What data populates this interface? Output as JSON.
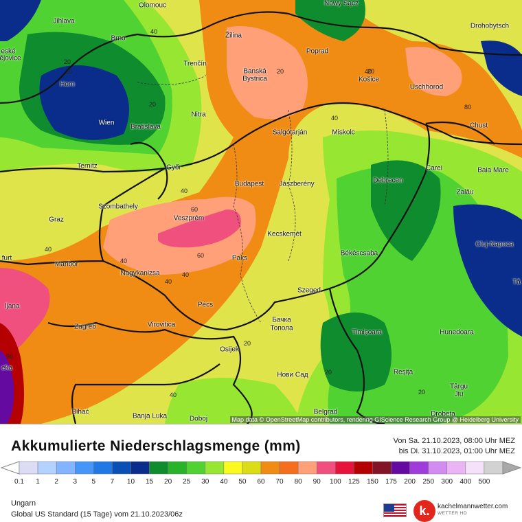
{
  "map": {
    "attribution": "Map data © OpenStreetMap contributors, rendering GIScience Research Group @ Heidelberg University",
    "cities": [
      {
        "name": "Olomouc",
        "dark": false
      },
      {
        "name": "Nowy Sącz",
        "dark": false
      },
      {
        "name": "Drohobytsch",
        "dark": false
      },
      {
        "name": "Jihlava",
        "dark": false
      },
      {
        "name": "Brno",
        "dark": false
      },
      {
        "name": "Žilina",
        "dark": false
      },
      {
        "name": "Poprad",
        "dark": false
      },
      {
        "name": "eské",
        "dark": false
      },
      {
        "name": "ějovice",
        "dark": false
      },
      {
        "name": "Trenčín",
        "dark": false
      },
      {
        "name": "Banská",
        "dark": false
      },
      {
        "name": "Bystrica",
        "dark": false
      },
      {
        "name": "Košice",
        "dark": false
      },
      {
        "name": "Uschhorod",
        "dark": false
      },
      {
        "name": "Horn",
        "dark": false
      },
      {
        "name": "Nitra",
        "dark": false
      },
      {
        "name": "Wien",
        "dark": true
      },
      {
        "name": "Bratislava",
        "dark": false
      },
      {
        "name": "Salgótarján",
        "dark": false
      },
      {
        "name": "Miskolc",
        "dark": false
      },
      {
        "name": "Chust",
        "dark": false
      },
      {
        "name": "Ternitz",
        "dark": false
      },
      {
        "name": "Győr",
        "dark": false
      },
      {
        "name": "Carei",
        "dark": false
      },
      {
        "name": "Baia Mare",
        "dark": false
      },
      {
        "name": "Budapest",
        "dark": false
      },
      {
        "name": "Jászberény",
        "dark": false
      },
      {
        "name": "Debrecen",
        "dark": false
      },
      {
        "name": "Zalău",
        "dark": false
      },
      {
        "name": "Szombathely",
        "dark": false
      },
      {
        "name": "Graz",
        "dark": false
      },
      {
        "name": "Veszprém",
        "dark": false
      },
      {
        "name": "Kecskemét",
        "dark": false
      },
      {
        "name": "Cluj-Napoca",
        "dark": false
      },
      {
        "name": "Békéscsaba",
        "dark": false
      },
      {
        "name": "furt",
        "dark": false
      },
      {
        "name": "Maribor",
        "dark": false
      },
      {
        "name": "Paks",
        "dark": false
      },
      {
        "name": "Nagykanizsa",
        "dark": false
      },
      {
        "name": "Szeged",
        "dark": false
      },
      {
        "name": "Tâ",
        "dark": false
      },
      {
        "name": "ljana",
        "dark": false
      },
      {
        "name": "Pécs",
        "dark": false
      },
      {
        "name": "Zagreb",
        "dark": false
      },
      {
        "name": "Virovitica",
        "dark": false
      },
      {
        "name": "Бачка",
        "dark": false
      },
      {
        "name": "Топола",
        "dark": false
      },
      {
        "name": "Timișoara",
        "dark": false
      },
      {
        "name": "Hunedoara",
        "dark": false
      },
      {
        "name": "Osijek",
        "dark": false
      },
      {
        "name": "Нови Сад",
        "dark": false
      },
      {
        "name": "Reșița",
        "dark": false
      },
      {
        "name": "Târgu",
        "dark": false
      },
      {
        "name": "Jiu",
        "dark": false
      },
      {
        "name": "Bihać",
        "dark": false
      },
      {
        "name": "Banja Luka",
        "dark": false
      },
      {
        "name": "Doboj",
        "dark": false
      },
      {
        "name": "Belgrad",
        "dark": false
      },
      {
        "name": "Drobeta",
        "dark": false
      },
      {
        "name": "eka",
        "dark": false
      }
    ],
    "isolines": [
      "40",
      "20",
      "20",
      "40",
      "40",
      "20",
      "40",
      "60",
      "40",
      "40",
      "60",
      "80",
      "20",
      "20",
      "20",
      "20",
      "40",
      "40",
      "40",
      "20",
      "96"
    ]
  },
  "legend": {
    "title": "Akkumulierte Niederschlagsmenge (mm)",
    "period_from": "Von Sa. 21.10.2023, 08:00 Uhr MEZ",
    "period_to": "bis Di. 31.10.2023, 01:00 Uhr MEZ",
    "ticks": [
      "0.1",
      "1",
      "2",
      "3",
      "5",
      "7",
      "10",
      "15",
      "20",
      "25",
      "30",
      "40",
      "50",
      "60",
      "70",
      "80",
      "90",
      "100",
      "125",
      "150",
      "175",
      "200",
      "250",
      "300",
      "400",
      "500"
    ],
    "colors": [
      "#dcdcf4",
      "#b4d2ff",
      "#82b4ff",
      "#4696fa",
      "#1e78e6",
      "#0a50b4",
      "#0a2d8c",
      "#0f8c2d",
      "#28b428",
      "#50d232",
      "#96e632",
      "#fafa1e",
      "#dcdc14",
      "#f08c14",
      "#f56e1e",
      "#ffa078",
      "#f0507d",
      "#e6143c",
      "#b40000",
      "#821428",
      "#640aa0",
      "#a03cdc",
      "#d28cf0",
      "#ebb4f5",
      "#f5e1fa",
      "#d2d2d2"
    ],
    "region": "Ungarn",
    "model": "Global US Standard (15 Tage) vom  21.10.2023/06z"
  },
  "brand": {
    "logo_letter": "k.",
    "name": "kachelmannwetter.com",
    "sub": "WETTER HD"
  },
  "flag_icon": "us-flag-icon"
}
